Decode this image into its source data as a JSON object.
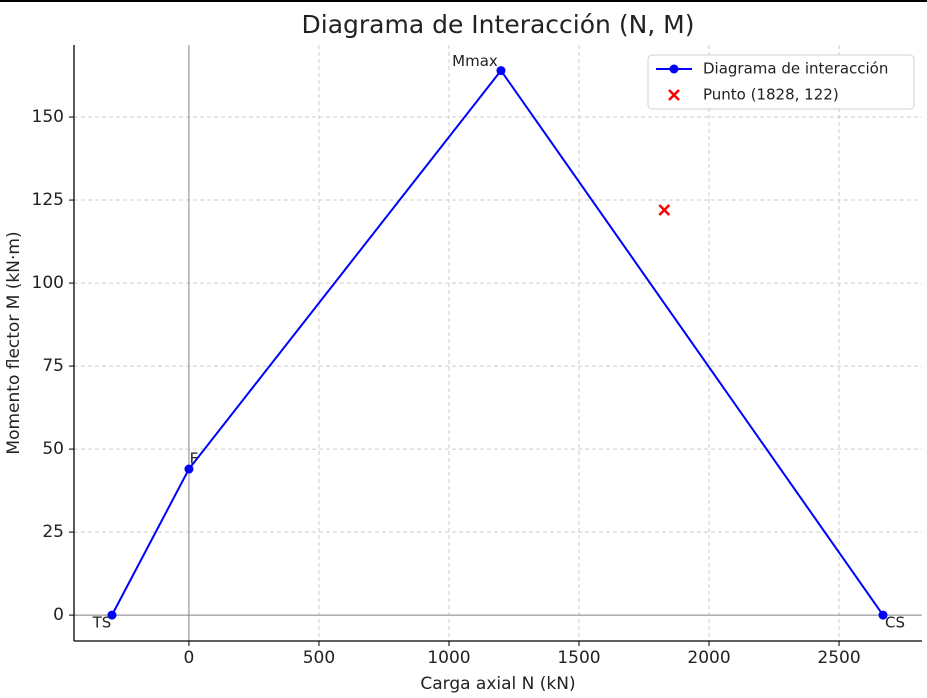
{
  "chart_data": {
    "type": "line",
    "title": "Diagrama de Interacción (N, M)",
    "x_label": "Carga axial N (kN)",
    "y_label": "Momento flector M (kN·m)",
    "series": [
      {
        "name": "Diagrama de interacción",
        "color": "#0000ff",
        "marker": "o",
        "x": [
          -296,
          0,
          1200,
          2669
        ],
        "values": [
          0,
          44,
          164,
          0
        ],
        "point_labels": [
          "TS",
          "F",
          "Mmax",
          "CS"
        ]
      },
      {
        "name": "Punto (1828, 122)",
        "color": "#ff0000",
        "marker": "x",
        "x": [
          1828
        ],
        "values": [
          122
        ]
      }
    ],
    "xlim": [
      -442,
      2819
    ],
    "ylim": [
      -7.8,
      171.7
    ],
    "xticks": [
      0,
      500,
      1000,
      1500,
      2000,
      2500
    ],
    "yticks": [
      0,
      25,
      50,
      75,
      100,
      125,
      150
    ],
    "grid": true,
    "legend": "upper right"
  }
}
